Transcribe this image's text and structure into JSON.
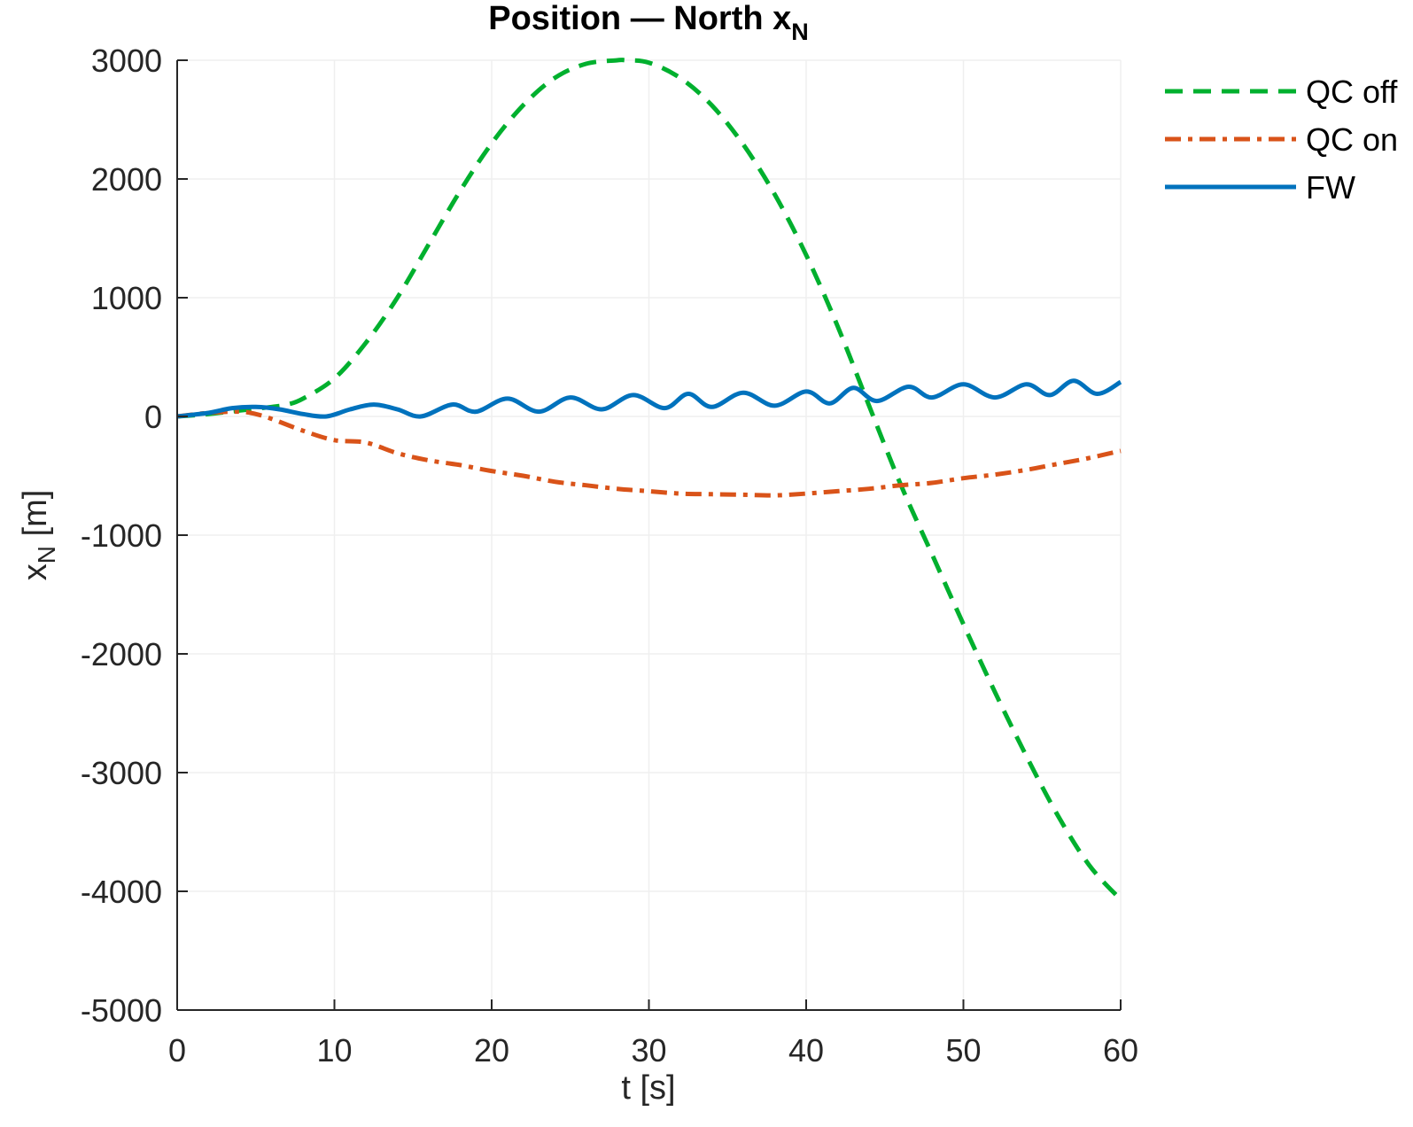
{
  "chart_data": {
    "type": "line",
    "title": {
      "main": "Position — North x",
      "sub": "N"
    },
    "xlabel": "t [s]",
    "ylabel": {
      "main": "x",
      "sub": "N",
      "unit": " [m]"
    },
    "xlim": [
      0,
      60
    ],
    "ylim": [
      -5000,
      3000
    ],
    "xticks": [
      "0",
      "10",
      "20",
      "30",
      "40",
      "50",
      "60"
    ],
    "yticks": [
      "3000",
      "2000",
      "1000",
      "0",
      "-1000",
      "-2000",
      "-3000",
      "-4000",
      "-5000"
    ],
    "grid": true,
    "legend_position": "top-right outside",
    "series": [
      {
        "name": "QC off",
        "color": "#00b02e",
        "style": "dashed",
        "x": [
          0,
          2,
          4,
          6,
          7,
          8,
          10,
          12,
          14,
          16,
          18,
          20,
          22,
          24,
          26,
          28,
          28.5,
          30,
          32,
          34,
          36,
          38,
          40,
          42,
          44,
          46,
          48,
          50,
          52,
          54,
          56,
          58,
          60
        ],
        "y": [
          0,
          20,
          50,
          80,
          100,
          150,
          320,
          620,
          1000,
          1450,
          1900,
          2300,
          2620,
          2850,
          2970,
          3000,
          3000,
          2980,
          2850,
          2620,
          2290,
          1870,
          1360,
          760,
          90,
          -570,
          -1160,
          -1750,
          -2320,
          -2860,
          -3360,
          -3780,
          -4070
        ]
      },
      {
        "name": "QC on",
        "color": "#d95319",
        "style": "dashdot",
        "x": [
          0,
          2,
          4,
          5,
          6,
          8,
          10,
          12,
          14,
          16,
          18,
          20,
          22,
          24,
          26,
          28,
          30,
          32,
          34,
          36,
          38,
          40,
          42,
          44,
          46,
          48,
          50,
          52,
          54,
          56,
          58,
          60
        ],
        "y": [
          0,
          30,
          40,
          20,
          -20,
          -120,
          -200,
          -220,
          -310,
          -370,
          -410,
          -460,
          -500,
          -550,
          -580,
          -610,
          -630,
          -650,
          -655,
          -660,
          -665,
          -650,
          -630,
          -610,
          -580,
          -560,
          -520,
          -490,
          -450,
          -400,
          -350,
          -290
        ]
      },
      {
        "name": "FW",
        "color": "#0072bd",
        "style": "solid",
        "x": [
          0,
          2,
          3.5,
          5,
          6.5,
          8,
          9.5,
          11,
          12.5,
          14,
          15.5,
          17.5,
          19,
          21,
          23,
          25,
          27,
          29,
          31,
          32.5,
          34,
          36,
          38,
          40,
          41.5,
          43,
          44.5,
          46.5,
          48,
          50,
          52,
          54,
          55.5,
          57,
          58.5,
          60
        ],
        "y": [
          0,
          30,
          70,
          80,
          60,
          20,
          0,
          60,
          100,
          60,
          0,
          100,
          40,
          150,
          40,
          160,
          60,
          180,
          70,
          190,
          80,
          200,
          90,
          210,
          110,
          240,
          130,
          250,
          160,
          270,
          160,
          270,
          180,
          300,
          190,
          290
        ]
      }
    ]
  }
}
